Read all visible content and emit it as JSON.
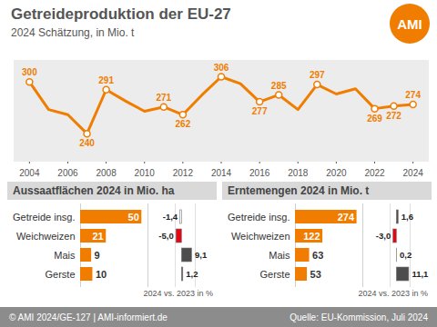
{
  "page": {
    "logo": "AMI",
    "footer_left": "© AMI 2024/GE-127 | AMI-informiert.de",
    "footer_right": "Quelle: EU-Kommission, Juli 2024"
  },
  "chart_data": [
    {
      "type": "line",
      "title": "Getreideproduktion der EU-27",
      "subtitle": "2024 Schätzung, in Mio. t",
      "x": [
        2004,
        2005,
        2006,
        2007,
        2008,
        2009,
        2010,
        2011,
        2012,
        2013,
        2014,
        2015,
        2016,
        2017,
        2018,
        2019,
        2020,
        2021,
        2022,
        2023,
        2024
      ],
      "values": [
        300,
        268,
        262,
        240,
        291,
        278,
        266,
        271,
        262,
        285,
        306,
        298,
        277,
        285,
        268,
        297,
        286,
        292,
        269,
        272,
        274
      ],
      "value_labels": [
        "300",
        null,
        null,
        "240",
        "291",
        null,
        null,
        "271",
        "262",
        null,
        "306",
        null,
        "277",
        "285",
        null,
        "297",
        null,
        null,
        "269",
        "272",
        "274"
      ],
      "data_labels": true,
      "color": "#f07d00",
      "marker": "circle",
      "xlim": [
        2003.2,
        2024.8
      ],
      "xticks": [
        2004,
        2006,
        2008,
        2010,
        2012,
        2014,
        2016,
        2018,
        2020,
        2022,
        2024
      ],
      "ylim": [
        208,
        325
      ],
      "yticks": [],
      "tick_labels": "x"
    },
    {
      "type": "bar",
      "orientation": "horizontal",
      "title": "Aussaatflächen 2024 in Mio. ha",
      "categories": [
        "Getreide insg.",
        "Weichweizen",
        "Mais",
        "Gerste"
      ],
      "values": [
        50,
        21,
        9,
        10
      ],
      "color": "#f07d00",
      "data_labels": true,
      "xlim": [
        0,
        55
      ],
      "xticks": [],
      "tick_labels": "y",
      "changes": {
        "values": [
          -1.4,
          -5.0,
          9.1,
          1.2
        ],
        "value_labels": [
          "-1,4",
          "-5,0",
          "9,1",
          "1,2"
        ],
        "colors": [
          "#ffffff",
          "#e30613",
          "#4d4d4d",
          "#4d4d4d"
        ],
        "xlim": [
          -6,
          12
        ]
      },
      "note": "2024 vs. 2023 in %"
    },
    {
      "type": "bar",
      "orientation": "horizontal",
      "title": "Erntemengen 2024 in Mio. t",
      "categories": [
        "Getreide insg.",
        "Weichweizen",
        "Mais",
        "Gerste"
      ],
      "values": [
        274,
        122,
        63,
        53
      ],
      "color": "#f07d00",
      "data_labels": true,
      "xlim": [
        0,
        300
      ],
      "xticks": [],
      "tick_labels": "y",
      "changes": {
        "values": [
          1.6,
          -3.0,
          0.2,
          11.1
        ],
        "value_labels": [
          "1,6",
          "-3,0",
          "0,2",
          "11,1"
        ],
        "colors": [
          "#4d4d4d",
          "#e30613",
          "#4d4d4d",
          "#4d4d4d"
        ],
        "xlim": [
          -6,
          12
        ]
      },
      "note": "2024 vs. 2023 in %"
    }
  ]
}
